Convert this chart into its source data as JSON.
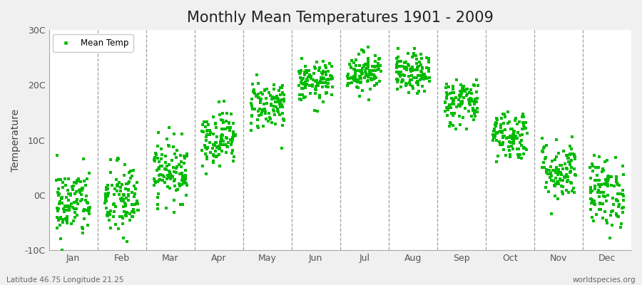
{
  "title": "Monthly Mean Temperatures 1901 - 2009",
  "ylabel": "Temperature",
  "xlabel_bottom_left": "Latitude 46.75 Longitude 21.25",
  "xlabel_bottom_right": "worldspecies.org",
  "marker_color": "#00bb00",
  "marker": "s",
  "marker_size": 2.5,
  "legend_label": "Mean Temp",
  "ylim": [
    -10,
    30
  ],
  "ytick_labels": [
    "-10C",
    "0C",
    "10C",
    "20C",
    "30C"
  ],
  "ytick_values": [
    -10,
    0,
    10,
    20,
    30
  ],
  "months": [
    "Jan",
    "Feb",
    "Mar",
    "Apr",
    "May",
    "Jun",
    "Jul",
    "Aug",
    "Sep",
    "Oct",
    "Nov",
    "Dec"
  ],
  "month_centers": [
    0.5,
    1.5,
    2.5,
    3.5,
    4.5,
    5.5,
    6.5,
    7.5,
    8.5,
    9.5,
    10.5,
    11.5
  ],
  "dashed_lines_x": [
    1.0,
    2.0,
    3.0,
    4.0,
    5.0,
    6.0,
    7.0,
    8.0,
    9.0,
    10.0,
    11.0
  ],
  "background_color": "#f0f0f0",
  "plot_bg_color": "#ffffff",
  "title_fontsize": 15,
  "num_years": 109,
  "monthly_means": [
    -1.5,
    -1.0,
    4.5,
    10.5,
    16.5,
    20.5,
    22.5,
    22.0,
    17.0,
    11.0,
    4.5,
    0.5
  ],
  "monthly_stds": [
    3.2,
    3.5,
    2.8,
    2.5,
    2.3,
    1.8,
    1.8,
    1.8,
    2.2,
    2.3,
    2.8,
    3.2
  ]
}
